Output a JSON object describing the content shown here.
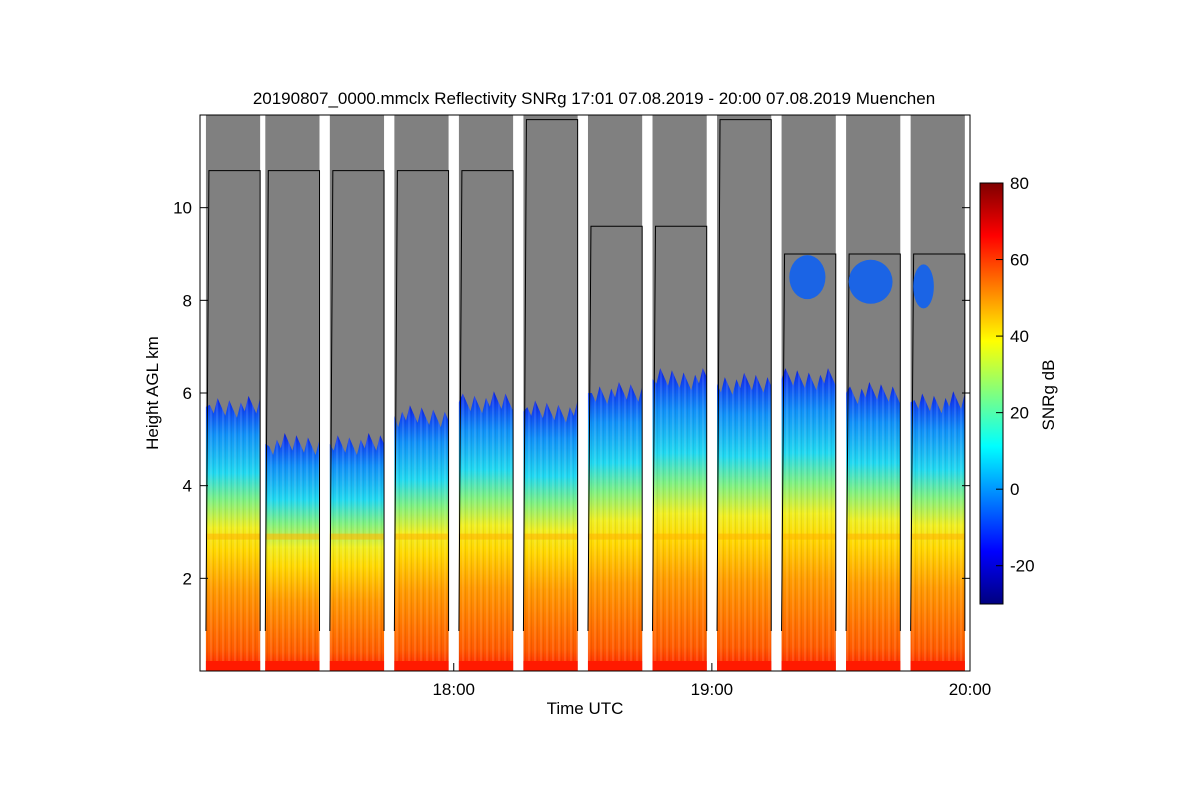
{
  "chart_data": {
    "type": "heatmap",
    "title": "20190807_0000.mmclx Reflectivity SNRg   17:01 07.08.2019 - 20:00 07.08.2019 Muenchen",
    "xlabel": "Time UTC",
    "ylabel": "Height AGL km",
    "x_ticks": [
      "18:00",
      "19:00",
      "20:00"
    ],
    "x_tick_hours": [
      18,
      19,
      20
    ],
    "xlim": [
      17.017,
      20.0
    ],
    "y_ticks": [
      "2",
      "4",
      "6",
      "8",
      "10"
    ],
    "y_tick_values": [
      2,
      4,
      6,
      8,
      10
    ],
    "ylim": [
      0,
      12
    ],
    "colorbar": {
      "label": "SNRg dB",
      "ticks": [
        "80",
        "60",
        "40",
        "20",
        "0",
        "-20"
      ],
      "tick_values": [
        80,
        60,
        40,
        20,
        0,
        -20
      ],
      "range": [
        -30,
        80
      ],
      "colormap": "jet"
    },
    "scans": [
      {
        "start": 17.04,
        "end": 17.25,
        "top": 10.8,
        "echo_top": 5.7
      },
      {
        "start": 17.27,
        "end": 17.48,
        "top": 10.8,
        "echo_top": 4.9
      },
      {
        "start": 17.52,
        "end": 17.73,
        "top": 10.8,
        "echo_top": 4.9
      },
      {
        "start": 17.77,
        "end": 17.98,
        "top": 10.8,
        "echo_top": 5.5
      },
      {
        "start": 18.02,
        "end": 18.23,
        "top": 10.8,
        "echo_top": 5.8
      },
      {
        "start": 18.27,
        "end": 18.48,
        "top": 11.9,
        "echo_top": 5.6
      },
      {
        "start": 18.52,
        "end": 18.73,
        "top": 9.6,
        "echo_top": 6.0
      },
      {
        "start": 18.77,
        "end": 18.98,
        "top": 9.6,
        "echo_top": 6.3
      },
      {
        "start": 19.02,
        "end": 19.23,
        "top": 11.9,
        "echo_top": 6.2
      },
      {
        "start": 19.27,
        "end": 19.48,
        "top": 9.0,
        "echo_top": 6.3
      },
      {
        "start": 19.52,
        "end": 19.73,
        "top": 9.0,
        "echo_top": 6.0
      },
      {
        "start": 19.77,
        "end": 19.98,
        "top": 9.0,
        "echo_top": 5.8
      }
    ],
    "melting_layer_km": 2.9,
    "background_color": "#808080"
  }
}
